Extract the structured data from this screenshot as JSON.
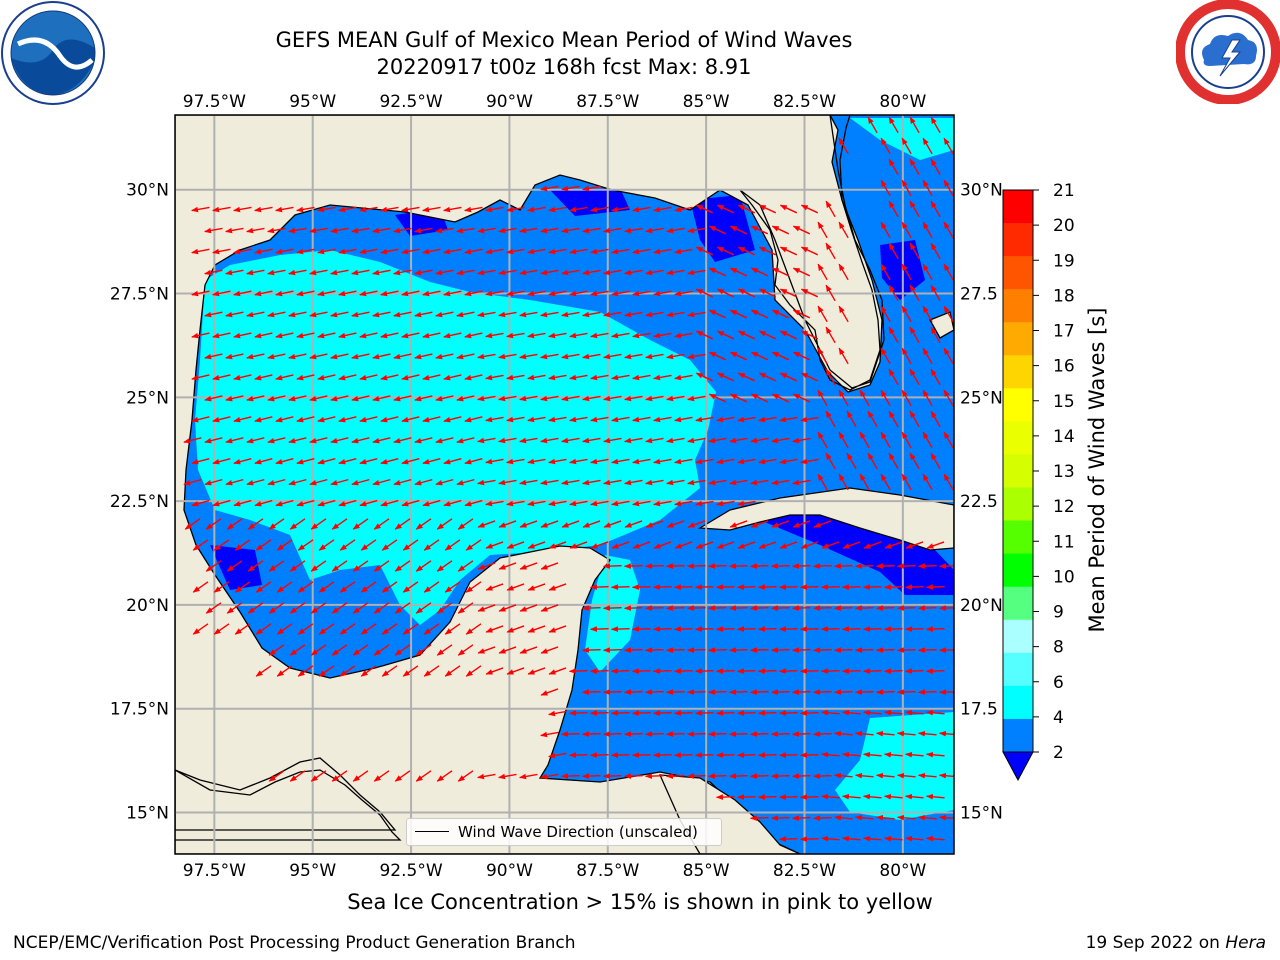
{
  "title_line1": "GEFS MEAN Gulf of Mexico Mean Period of Wind Waves",
  "title_line2": "20220917 t00z 168h fcst   Max: 8.91",
  "map": {
    "lon_range": [
      -98.5,
      -78.7
    ],
    "lat_range": [
      14.0,
      31.8
    ],
    "lon_ticks": [
      "97.5°W",
      "95°W",
      "92.5°W",
      "90°W",
      "87.5°W",
      "85°W",
      "82.5°W",
      "80°W"
    ],
    "lat_ticks": [
      "30°N",
      "27.5°N",
      "25°N",
      "22.5°N",
      "20°N",
      "17.5°N",
      "15°N"
    ],
    "lat_ticks_right": [
      "30°N",
      "27.5",
      "25°N",
      "22.5",
      "20°N",
      "17.5",
      "15°N"
    ],
    "land_color": "#efecdc",
    "arrow_color": "#ff0000",
    "gridlines": true
  },
  "legend": {
    "label": "Wind Wave Direction (unscaled)",
    "placement": "lower-center"
  },
  "colorbar": {
    "label": "Mean Period of Wind Waves [s]",
    "ticks": [
      "21",
      "20",
      "19",
      "18",
      "17",
      "16",
      "15",
      "14",
      "13",
      "12",
      "11",
      "10",
      "9",
      "8",
      "6",
      "4",
      "2"
    ],
    "colors": [
      "#ff0000",
      "#ff2a00",
      "#ff5500",
      "#ff8000",
      "#ffaa00",
      "#ffd500",
      "#ffff00",
      "#eaff00",
      "#d5ff00",
      "#aaff00",
      "#55ff00",
      "#00ff00",
      "#55ff80",
      "#aaffff",
      "#55ffff",
      "#00ffff",
      "#0080ff"
    ],
    "under_color": "#0000ff"
  },
  "ice_note": "Sea Ice Concentration > 15% is shown in pink to yellow",
  "footer_left": "NCEP/EMC/Verification Post Processing Product Generation Branch",
  "footer_date": "19 Sep 2022 on ",
  "footer_machine": "Hera",
  "logos": {
    "left": "noaa-logo",
    "right": "nws-logo"
  }
}
